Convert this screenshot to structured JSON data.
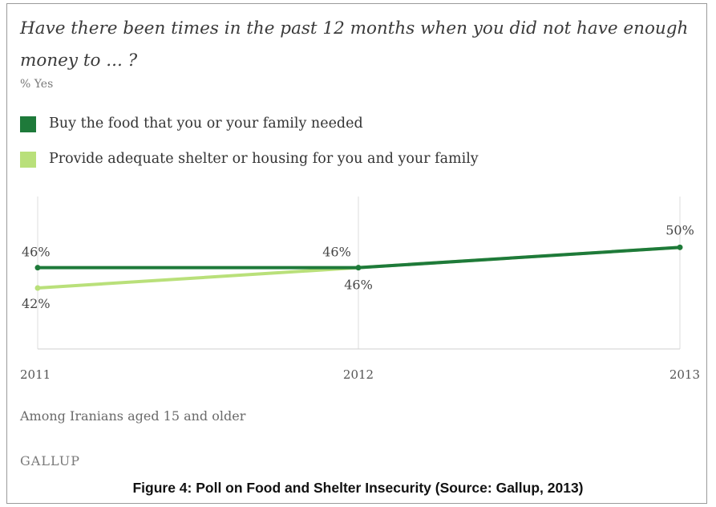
{
  "chart_data": {
    "type": "line",
    "title": "Have there been times in the past 12 months when you did not have enough money to ... ?",
    "subtitle": "% Yes",
    "x": [
      "2011",
      "2012",
      "2013"
    ],
    "series": [
      {
        "name": "Buy the food that you or your family needed",
        "color": "#1e7a3a",
        "values": [
          46,
          46,
          50
        ],
        "labels": [
          "46%",
          "46%",
          "50%"
        ]
      },
      {
        "name": "Provide adequate shelter or housing for you and your family",
        "color": "#b9e07a",
        "values": [
          42,
          46,
          50
        ],
        "labels": [
          "42%",
          "46%",
          ""
        ]
      }
    ],
    "ylim": [
      30,
      60
    ],
    "grid": "vertical",
    "legend": "top-left",
    "footnote": "Among Iranians aged 15 and older"
  },
  "brand": "GALLUP",
  "caption": "Figure 4: Poll on Food and Shelter Insecurity (Source: Gallup, 2013)"
}
